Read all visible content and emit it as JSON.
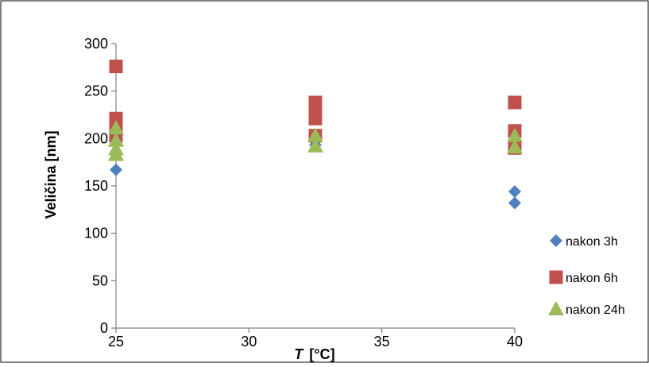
{
  "chart_data": {
    "type": "scatter",
    "title": "",
    "xlabel": "T",
    "xlabel_unit": "[°C]",
    "ylabel": "Veličina [nm]",
    "xlim": [
      25,
      40
    ],
    "ylim": [
      0,
      300
    ],
    "xticks": [
      "25",
      "30",
      "35",
      "40"
    ],
    "yticks": [
      "0",
      "50",
      "100",
      "150",
      "200",
      "250",
      "300"
    ],
    "grid": false,
    "legend_position": "right",
    "series": [
      {
        "name": "nakon 3h",
        "marker": "diamond",
        "color": "#4f81bd",
        "points": [
          [
            25,
            167
          ],
          [
            25,
            185
          ],
          [
            25,
            195
          ],
          [
            32.5,
            193
          ],
          [
            32.5,
            197
          ],
          [
            40,
            132
          ],
          [
            40,
            144
          ],
          [
            40,
            190
          ]
        ]
      },
      {
        "name": "nakon 6h",
        "marker": "square",
        "color": "#c0504d",
        "points": [
          [
            25,
            276
          ],
          [
            25,
            221
          ],
          [
            25,
            212
          ],
          [
            25,
            203
          ],
          [
            32.5,
            238
          ],
          [
            32.5,
            229
          ],
          [
            32.5,
            221
          ],
          [
            32.5,
            203
          ],
          [
            40,
            238
          ],
          [
            40,
            208
          ],
          [
            40,
            190
          ]
        ]
      },
      {
        "name": "nakon 24h",
        "marker": "triangle",
        "color": "#9bbb59",
        "points": [
          [
            25,
            211
          ],
          [
            25,
            198
          ],
          [
            25,
            189
          ],
          [
            25,
            183
          ],
          [
            32.5,
            203
          ],
          [
            32.5,
            192
          ],
          [
            40,
            203
          ],
          [
            40,
            191
          ]
        ]
      }
    ]
  }
}
